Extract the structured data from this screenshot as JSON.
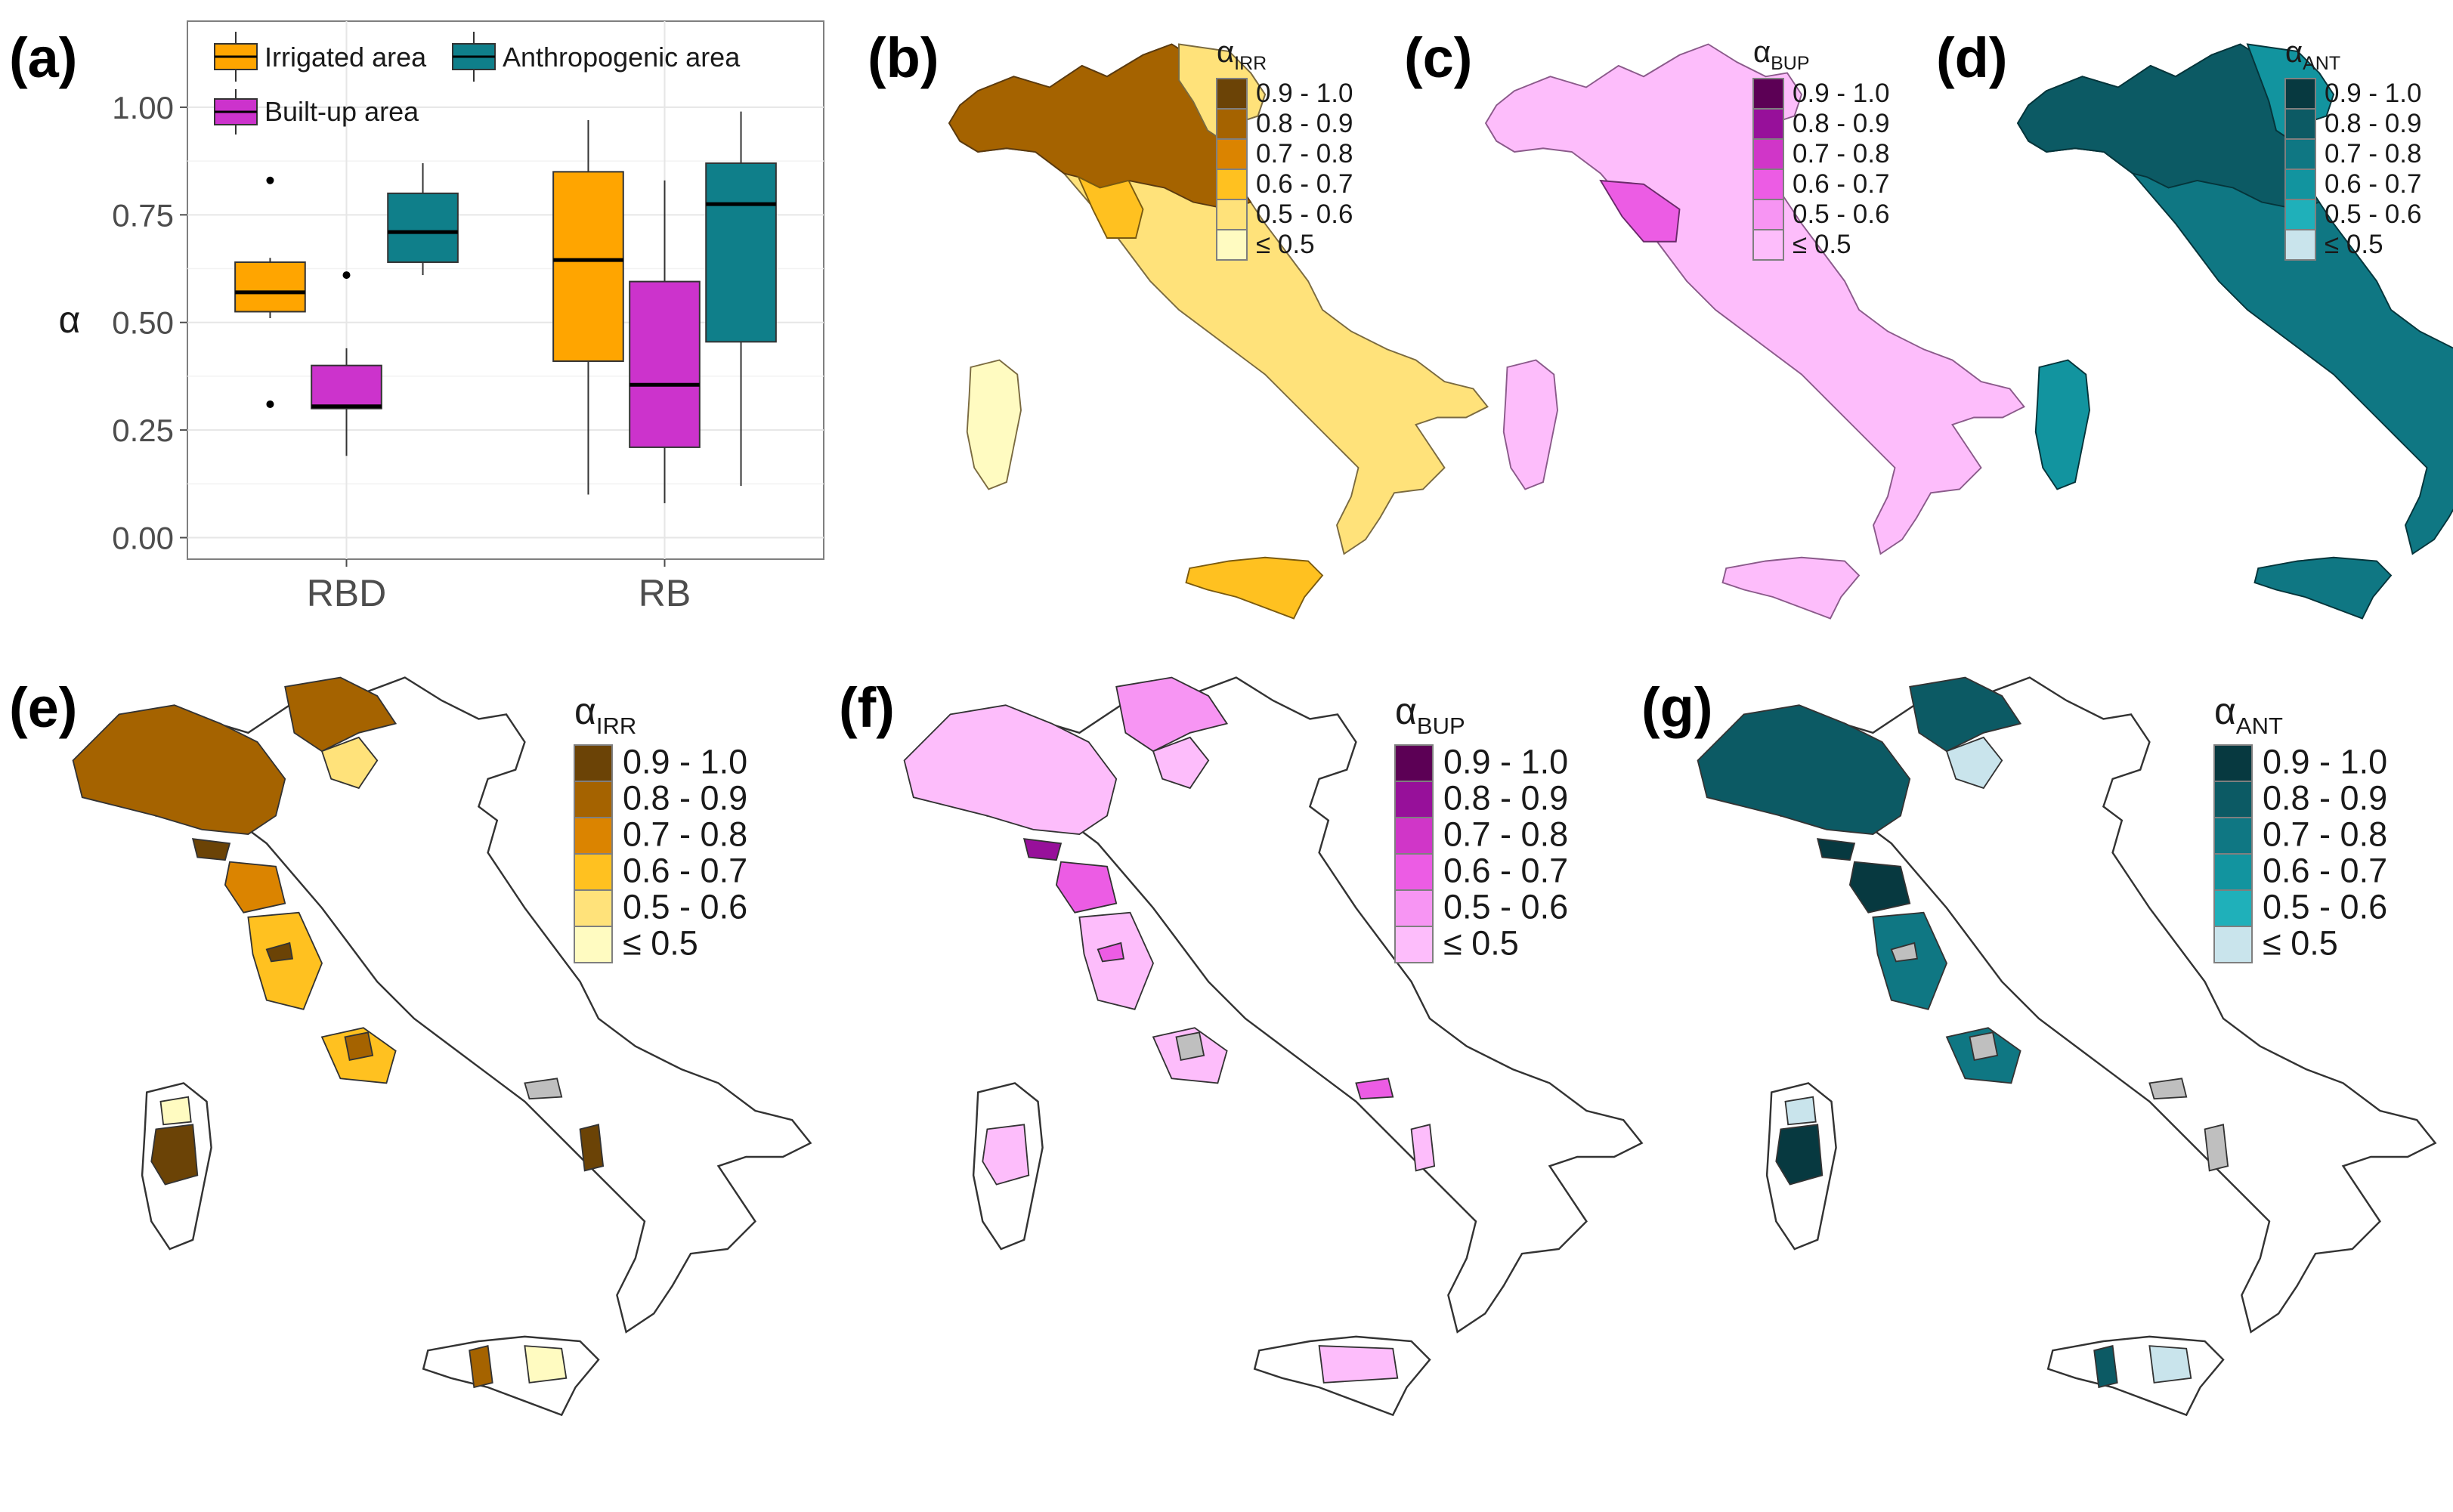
{
  "panels": {
    "a": "(a)",
    "b": "(b)",
    "c": "(c)",
    "d": "(d)",
    "e": "(e)",
    "f": "(f)",
    "g": "(g)"
  },
  "chart_data": [
    {
      "type": "boxplot",
      "panel": "(a)",
      "ylabel": "α",
      "ylim": [
        -0.05,
        1.2
      ],
      "y_ticks": [
        "0.00",
        "0.25",
        "0.50",
        "0.75",
        "1.00"
      ],
      "y_tick_values": [
        0,
        0.25,
        0.5,
        0.75,
        1.0
      ],
      "categories": [
        "RBD",
        "RB"
      ],
      "grid": true,
      "legend_position": "top-left inside",
      "series": [
        {
          "name": "Irrigated area",
          "color": "#FFA500",
          "boxes": [
            {
              "category": "RBD",
              "min": 0.51,
              "q1": 0.525,
              "median": 0.57,
              "q3": 0.64,
              "max": 0.65,
              "outliers": [
                0.83,
                0.31
              ]
            },
            {
              "category": "RB",
              "min": 0.1,
              "q1": 0.41,
              "median": 0.645,
              "q3": 0.85,
              "max": 0.97,
              "outliers": []
            }
          ]
        },
        {
          "name": "Built-up area",
          "color": "#CC33CC",
          "boxes": [
            {
              "category": "RBD",
              "min": 0.19,
              "q1": 0.3,
              "median": 0.305,
              "q3": 0.4,
              "max": 0.44,
              "outliers": [
                0.61
              ]
            },
            {
              "category": "RB",
              "min": 0.08,
              "q1": 0.21,
              "median": 0.355,
              "q3": 0.595,
              "max": 0.83,
              "outliers": []
            }
          ]
        },
        {
          "name": "Anthropogenic area",
          "color": "#0F7F8A",
          "boxes": [
            {
              "category": "RBD",
              "min": 0.61,
              "q1": 0.64,
              "median": 0.71,
              "q3": 0.8,
              "max": 0.87,
              "outliers": []
            },
            {
              "category": "RB",
              "min": 0.12,
              "q1": 0.455,
              "median": 0.775,
              "q3": 0.87,
              "max": 0.99,
              "outliers": []
            }
          ]
        }
      ]
    },
    {
      "type": "choropleth-map",
      "panels": [
        "(b)",
        "(c)",
        "(d)",
        "(e)",
        "(f)",
        "(g)"
      ],
      "legend_bins": [
        "0.9 - 1.0",
        "0.8 - 0.9",
        "0.7 - 0.8",
        "0.6 - 0.7",
        "0.5 - 0.6",
        "≤ 0.5"
      ],
      "legends": {
        "irr": {
          "title_main": "α",
          "title_sub": "IRR",
          "colors": [
            "#6B4306",
            "#A56300",
            "#DB8400",
            "#FFC120",
            "#FFE27A",
            "#FFFBC1"
          ]
        },
        "bup": {
          "title_main": "α",
          "title_sub": "BUP",
          "colors": [
            "#5C0055",
            "#97109A",
            "#D036C8",
            "#EC5CE4",
            "#F795F3",
            "#FDBDFB"
          ]
        },
        "ant": {
          "title_main": "α",
          "title_sub": "ANT",
          "colors": [
            "#073940",
            "#0C5A64",
            "#0F7783",
            "#12949F",
            "#1FB0BA",
            "#C9E4EC"
          ]
        }
      },
      "nodata_color": "#BFBFBF",
      "outline_color": "#333333"
    }
  ]
}
